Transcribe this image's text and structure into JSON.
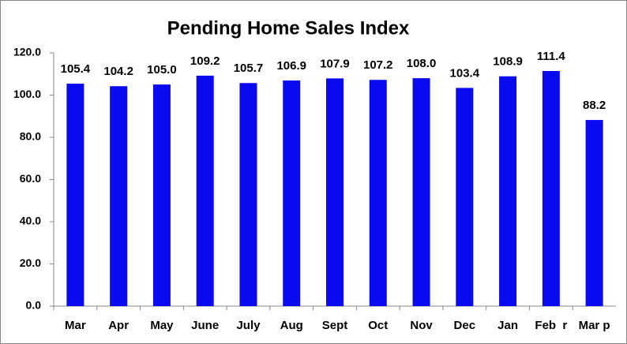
{
  "chart_data": {
    "type": "bar",
    "title": "Pending Home Sales Index",
    "categories": [
      "Mar",
      "Apr",
      "May",
      "June",
      "July",
      "Aug",
      "Sept",
      "Oct",
      "Nov",
      "Dec",
      "Jan",
      "Feb  r",
      "Mar p"
    ],
    "values": [
      105.4,
      104.2,
      105,
      109.2,
      105.7,
      106.9,
      107.9,
      107.2,
      108,
      103.4,
      108.9,
      111.4,
      88.2
    ],
    "value_labels": [
      "105.4",
      "104.2",
      "105.0",
      "109.2",
      "105.7",
      "106.9",
      "107.9",
      "107.2",
      "108.0",
      "103.4",
      "108.9",
      "111.4",
      "88.2"
    ],
    "color": "#0a0af0",
    "ylim": [
      0,
      120
    ],
    "yticks": [
      {
        "value": 0,
        "label": "0.0"
      },
      {
        "value": 20,
        "label": "20.0"
      },
      {
        "value": 40,
        "label": "40.0"
      },
      {
        "value": 60,
        "label": "60.0"
      },
      {
        "value": 80,
        "label": "80.0"
      },
      {
        "value": 100,
        "label": "100.0"
      },
      {
        "value": 120,
        "label": "120.0"
      }
    ],
    "grid": false
  }
}
